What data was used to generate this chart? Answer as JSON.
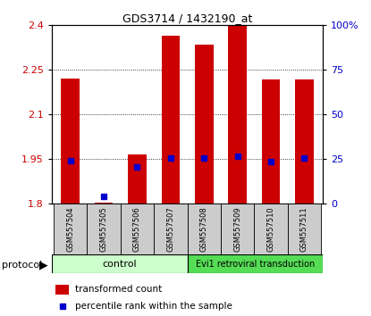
{
  "title": "GDS3714 / 1432190_at",
  "samples": [
    "GSM557504",
    "GSM557505",
    "GSM557506",
    "GSM557507",
    "GSM557508",
    "GSM557509",
    "GSM557510",
    "GSM557511"
  ],
  "red_bar_top": [
    2.222,
    1.805,
    1.965,
    2.365,
    2.335,
    2.4,
    2.218,
    2.218
  ],
  "blue_mark": [
    1.945,
    1.825,
    1.925,
    1.955,
    1.955,
    1.96,
    1.943,
    1.955
  ],
  "bar_bottom": 1.8,
  "ylim": [
    1.8,
    2.4
  ],
  "yticks_left": [
    1.8,
    1.95,
    2.1,
    2.25,
    2.4
  ],
  "yticks_right": [
    0,
    25,
    50,
    75,
    100
  ],
  "ylabel_left_color": "#cc0000",
  "ylabel_right_color": "#0000cc",
  "bar_color": "#cc0000",
  "blue_color": "#0000cc",
  "n_control": 4,
  "control_label": "control",
  "evi1_label": "Evi1 retroviral transduction",
  "protocol_label": "protocol",
  "legend_red": "transformed count",
  "legend_blue": "percentile rank within the sample",
  "control_bg": "#ccffcc",
  "evi1_bg": "#55dd55",
  "sample_bg": "#cccccc",
  "bar_width": 0.55,
  "blue_mark_size": 4,
  "figsize": [
    4.15,
    3.54
  ],
  "dpi": 100
}
